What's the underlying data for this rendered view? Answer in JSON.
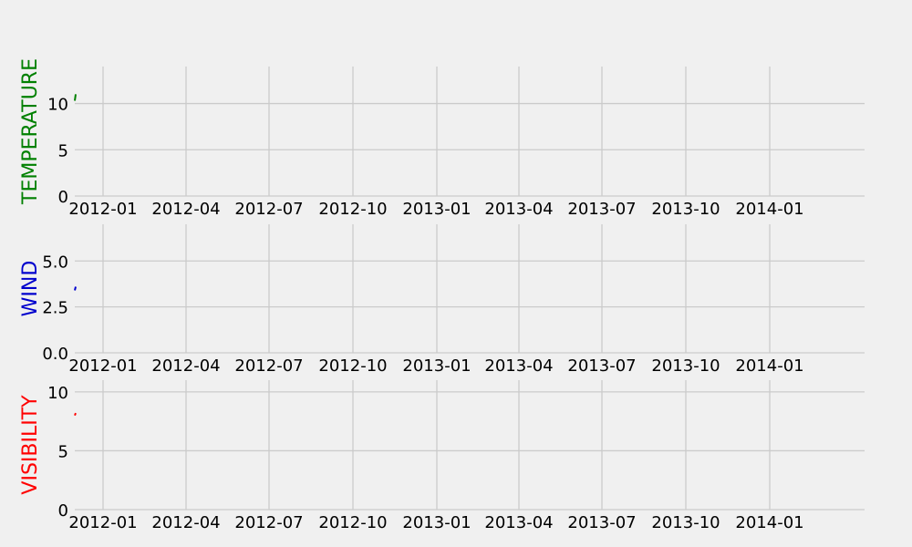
{
  "chart_data": [
    {
      "type": "line",
      "ylabel": "TEMPERATURE",
      "color": "#008000",
      "ylim": [
        0,
        14
      ],
      "yticks": [
        0,
        5,
        10
      ],
      "xlim": [
        "2011-12-01",
        "2014-04-15"
      ],
      "xticks": [
        "2012-01",
        "2012-04",
        "2012-07",
        "2012-10",
        "2013-01",
        "2013-04",
        "2013-07",
        "2013-10",
        "2014-01"
      ],
      "grid": true,
      "series": [
        {
          "x": [
            "2011-12-01",
            "2011-12-02"
          ],
          "y": [
            10.3,
            11.0
          ]
        }
      ]
    },
    {
      "type": "line",
      "ylabel": "WIND",
      "color": "#0000cd",
      "ylim": [
        0,
        7
      ],
      "yticks": [
        "0.0",
        "2.5",
        "5.0"
      ],
      "xlim": [
        "2011-12-01",
        "2014-04-15"
      ],
      "xticks": [
        "2012-01",
        "2012-04",
        "2012-07",
        "2012-10",
        "2013-01",
        "2013-04",
        "2013-07",
        "2013-10",
        "2014-01"
      ],
      "grid": true,
      "series": [
        {
          "x": [
            "2011-12-01",
            "2011-12-02"
          ],
          "y": [
            3.4,
            3.6
          ]
        }
      ]
    },
    {
      "type": "line",
      "ylabel": "VISIBILITY",
      "color": "#ff0000",
      "ylim": [
        0,
        11
      ],
      "yticks": [
        0,
        5,
        10
      ],
      "xlim": [
        "2011-12-01",
        "2014-04-15"
      ],
      "xticks": [
        "2012-01",
        "2012-04",
        "2012-07",
        "2012-10",
        "2013-01",
        "2013-04",
        "2013-07",
        "2013-10",
        "2014-01"
      ],
      "grid": true,
      "series": [
        {
          "x": [
            "2011-12-01",
            "2011-12-02"
          ],
          "y": [
            8.0,
            8.2
          ]
        }
      ]
    }
  ]
}
